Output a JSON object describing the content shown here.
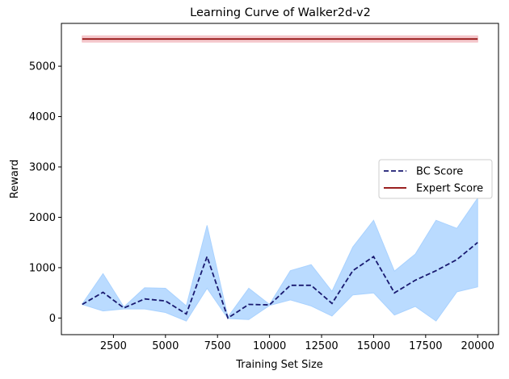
{
  "chart_data": {
    "type": "line",
    "title": "Learning Curve of Walker2d-v2",
    "xlabel": "Training Set Size",
    "ylabel": "Reward",
    "xlim": [
      0,
      21000
    ],
    "ylim": [
      -330,
      5850
    ],
    "xticks": [
      2500,
      5000,
      7500,
      10000,
      12500,
      15000,
      17500,
      20000
    ],
    "yticks": [
      0,
      1000,
      2000,
      3000,
      4000,
      5000
    ],
    "legend_position": "center-right",
    "grid": false,
    "series": [
      {
        "name": "BC Score",
        "style": "dashed",
        "color": "#191970",
        "band_color": "#a9d2ff",
        "x": [
          1000,
          2000,
          3000,
          4000,
          5000,
          6000,
          7000,
          8000,
          9000,
          10000,
          11000,
          12000,
          13000,
          14000,
          15000,
          16000,
          17000,
          18000,
          19000,
          20000
        ],
        "y": [
          270,
          510,
          200,
          380,
          340,
          80,
          1220,
          0,
          270,
          260,
          650,
          650,
          290,
          940,
          1220,
          500,
          750,
          940,
          1160,
          1500
        ],
        "lower": [
          270,
          140,
          180,
          180,
          110,
          -60,
          590,
          -10,
          -30,
          250,
          360,
          240,
          40,
          460,
          500,
          60,
          230,
          -60,
          520,
          620
        ],
        "upper": [
          280,
          880,
          220,
          600,
          590,
          240,
          1840,
          20,
          590,
          270,
          940,
          1060,
          530,
          1410,
          1940,
          930,
          1270,
          1940,
          1780,
          2380
        ]
      },
      {
        "name": "Expert Score",
        "style": "solid",
        "color": "#8b0000",
        "band_color": "#f2b8bd",
        "x": [
          1000,
          20000
        ],
        "y": [
          5540,
          5540
        ],
        "lower": [
          5480,
          5480
        ],
        "upper": [
          5600,
          5600
        ]
      }
    ]
  }
}
